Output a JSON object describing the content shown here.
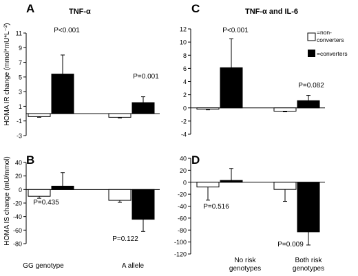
{
  "figure": {
    "panel_letters": [
      "A",
      "B",
      "C",
      "D"
    ],
    "panel_titles": {
      "A": "TNF-α",
      "C": "TNF-α and IL-6"
    },
    "ylabel_top": "HOMA IR change (mmol*mU*L⁻²)",
    "ylabel_bottom": "HOMA IS change (mU/mmol)",
    "left_categories": [
      "GG genotype",
      "A allele"
    ],
    "right_categories": [
      "No risk genotypes",
      "Both risk genotypes"
    ],
    "legend": [
      {
        "label": "=non-converters",
        "color": "#ffffff"
      },
      {
        "label": "=converters",
        "color": "#000000"
      }
    ]
  },
  "chart_data": [
    {
      "panel": "A",
      "type": "bar",
      "title": "TNF-α",
      "ylabel": "HOMA IR change (mmol*mU*L⁻²)",
      "categories": [
        "GG genotype",
        "A allele"
      ],
      "ylim": [
        -3,
        11
      ],
      "yticks": [
        -3,
        -1,
        1,
        3,
        5,
        7,
        9,
        11
      ],
      "series": [
        {
          "name": "non-converters",
          "color": "#ffffff",
          "values": [
            -0.4,
            -0.5
          ],
          "err": [
            0.1,
            0.1
          ]
        },
        {
          "name": "converters",
          "color": "#000000",
          "values": [
            5.4,
            1.5
          ],
          "err": [
            2.6,
            0.8
          ]
        }
      ],
      "pvalues": [
        {
          "label": "P<0.001",
          "category": 0
        },
        {
          "label": "P=0.001",
          "category": 1
        }
      ]
    },
    {
      "panel": "B",
      "type": "bar",
      "ylabel": "HOMA IS change (mU/mmol)",
      "categories": [
        "GG genotype",
        "A allele"
      ],
      "ylim": [
        -80,
        40
      ],
      "yticks": [
        -80,
        -60,
        -40,
        -20,
        0,
        20,
        40
      ],
      "series": [
        {
          "name": "non-converters",
          "color": "#ffffff",
          "values": [
            -10,
            -16
          ],
          "err": [
            3,
            3
          ]
        },
        {
          "name": "converters",
          "color": "#000000",
          "values": [
            5,
            -44
          ],
          "err": [
            20,
            18
          ]
        }
      ],
      "pvalues": [
        {
          "label": "P=0.435",
          "category": 0
        },
        {
          "label": "P=0.122",
          "category": 1
        }
      ]
    },
    {
      "panel": "C",
      "type": "bar",
      "title": "TNF-α and IL-6",
      "categories": [
        "No risk genotypes",
        "Both risk genotypes"
      ],
      "ylim": [
        -4,
        12
      ],
      "yticks": [
        -4,
        -2,
        0,
        2,
        4,
        6,
        8,
        10,
        12
      ],
      "series": [
        {
          "name": "non-converters",
          "color": "#ffffff",
          "values": [
            -0.2,
            -0.5
          ],
          "err": [
            0.1,
            0.1
          ]
        },
        {
          "name": "converters",
          "color": "#000000",
          "values": [
            6.1,
            1.1
          ],
          "err": [
            4.4,
            0.8
          ]
        }
      ],
      "pvalues": [
        {
          "label": "P<0.001",
          "category": 0
        },
        {
          "label": "P=0.082",
          "category": 1
        }
      ]
    },
    {
      "panel": "D",
      "type": "bar",
      "categories": [
        "No risk genotypes",
        "Both risk genotypes"
      ],
      "ylim": [
        -120,
        40
      ],
      "yticks": [
        -120,
        -100,
        -80,
        -60,
        -40,
        -20,
        0,
        20,
        40
      ],
      "series": [
        {
          "name": "non-converters",
          "color": "#ffffff",
          "values": [
            -8,
            -12
          ],
          "err": [
            22,
            20
          ]
        },
        {
          "name": "converters",
          "color": "#000000",
          "values": [
            3,
            -83
          ],
          "err": [
            20,
            22
          ]
        }
      ],
      "pvalues": [
        {
          "label": "P=0.516",
          "category": 0
        },
        {
          "label": "P=0.009",
          "category": 1
        }
      ]
    }
  ]
}
